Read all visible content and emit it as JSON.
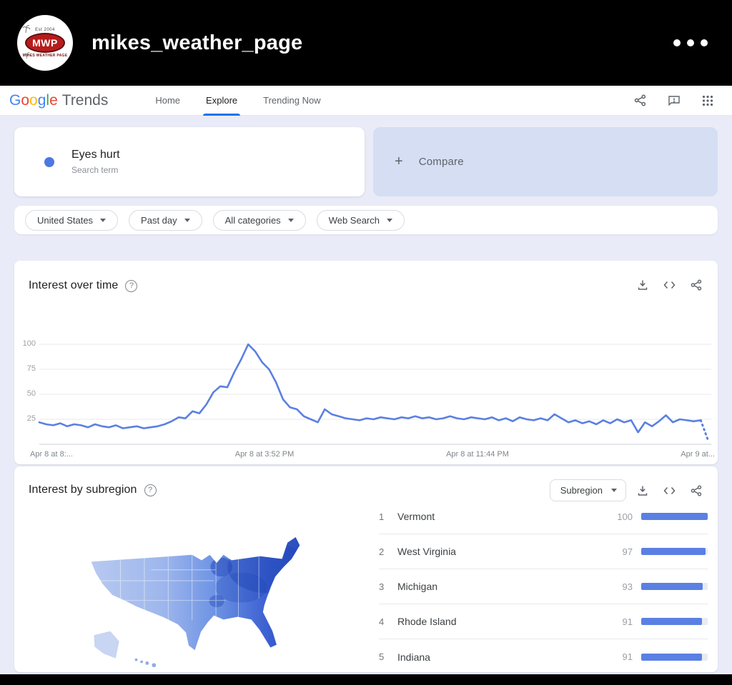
{
  "instagram_header": {
    "username": "mikes_weather_page",
    "logo_abbr": "MWP",
    "logo_top_text": "Est 2004",
    "logo_bottom_text": "MIKES WEATHER PAGE"
  },
  "trends_header": {
    "logo": {
      "letters": [
        {
          "ch": "G",
          "color": "#4285F4"
        },
        {
          "ch": "o",
          "color": "#EA4335"
        },
        {
          "ch": "o",
          "color": "#FBBC05"
        },
        {
          "ch": "g",
          "color": "#4285F4"
        },
        {
          "ch": "l",
          "color": "#34A853"
        },
        {
          "ch": "e",
          "color": "#EA4335"
        }
      ],
      "suffix": "Trends"
    },
    "nav": [
      {
        "label": "Home",
        "active": false
      },
      {
        "label": "Explore",
        "active": true
      },
      {
        "label": "Trending Now",
        "active": false
      }
    ]
  },
  "query": {
    "term": "Eyes hurt",
    "term_type": "Search term",
    "compare_label": "Compare"
  },
  "filters": [
    {
      "label": "United States"
    },
    {
      "label": "Past day"
    },
    {
      "label": "All categories"
    },
    {
      "label": "Web Search"
    }
  ],
  "interest_over_time": {
    "title": "Interest over time"
  },
  "chart_data": {
    "type": "line",
    "title": "Interest over time",
    "series_name": "Eyes hurt",
    "timeframe": "Past day",
    "region": "United States",
    "y_ticks": [
      100,
      75,
      50,
      25
    ],
    "ylim": [
      0,
      100
    ],
    "x_start_label": "Apr 8 at 8:...",
    "x_mid1_label": "Apr 8 at 3:52 PM",
    "x_mid2_label": "Apr 8 at 11:44 PM",
    "x_end_label": "Apr 9 at...",
    "grid": true,
    "legend": false,
    "line_color": "#5a80e1",
    "last_segment_dotted": true,
    "values": [
      22,
      20,
      19,
      21,
      18,
      20,
      19,
      17,
      20,
      18,
      17,
      19,
      16,
      17,
      18,
      16,
      17,
      18,
      20,
      23,
      27,
      26,
      33,
      31,
      40,
      52,
      58,
      57,
      72,
      85,
      100,
      93,
      82,
      75,
      62,
      45,
      37,
      35,
      28,
      25,
      22,
      35,
      30,
      28,
      26,
      25,
      24,
      26,
      25,
      27,
      26,
      25,
      27,
      26,
      28,
      26,
      27,
      25,
      26,
      28,
      26,
      25,
      27,
      26,
      25,
      27,
      24,
      26,
      23,
      27,
      25,
      24,
      26,
      24,
      30,
      26,
      22,
      24,
      21,
      23,
      20,
      24,
      21,
      25,
      22,
      24,
      12,
      22,
      18,
      23,
      29,
      22,
      25,
      24,
      23,
      24,
      5
    ]
  },
  "interest_by_subregion": {
    "title": "Interest by subregion",
    "dropdown_label": "Subregion",
    "bar_color": "#5b80e3",
    "rows": [
      {
        "rank": "1",
        "name": "Vermont",
        "value": 100
      },
      {
        "rank": "2",
        "name": "West Virginia",
        "value": 97
      },
      {
        "rank": "3",
        "name": "Michigan",
        "value": 93
      },
      {
        "rank": "4",
        "name": "Rhode Island",
        "value": 91
      },
      {
        "rank": "5",
        "name": "Indiana",
        "value": 91
      }
    ]
  },
  "colors": {
    "accent_blue": "#5a80e1",
    "background": "#e9ecf8",
    "compare_card": "#d5def3",
    "map_light": "#b8c9f0",
    "map_dark": "#2b4dbd"
  }
}
